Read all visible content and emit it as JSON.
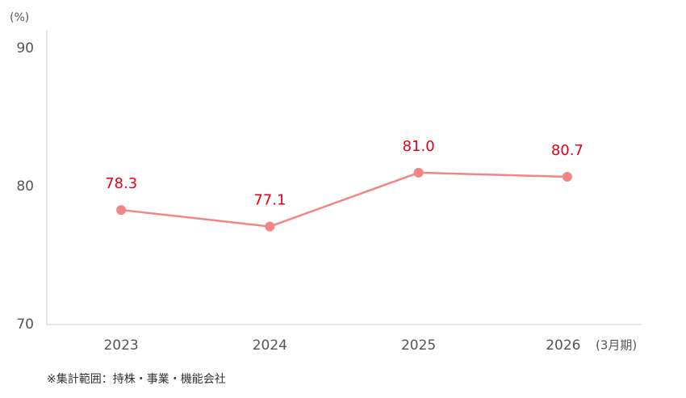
{
  "chart_data": {
    "type": "line",
    "y_unit": "(%)",
    "x_unit": "(3月期)",
    "categories": [
      "2023",
      "2024",
      "2025",
      "2026"
    ],
    "values": [
      78.3,
      77.1,
      81.0,
      80.7
    ],
    "value_labels": [
      "78.3",
      "77.1",
      "81.0",
      "80.7"
    ],
    "color": "#f28585",
    "label_color": "#e60012",
    "ylim": [
      70,
      90
    ],
    "yticks": [
      70,
      80,
      90
    ],
    "note": "※集計範囲：持株・事業・機能会社"
  }
}
